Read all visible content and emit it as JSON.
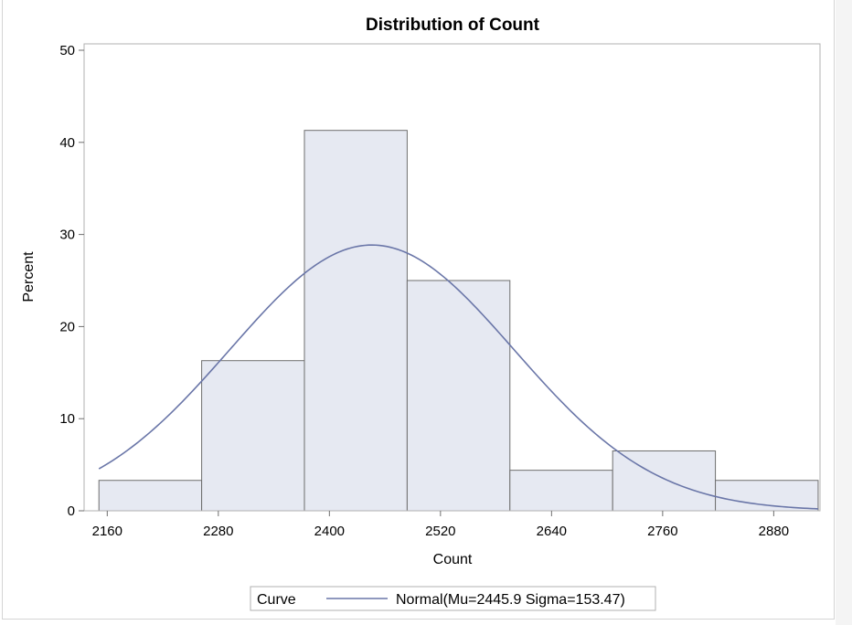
{
  "chart_data": {
    "type": "bar",
    "title": "Distribution of Count",
    "xlabel": "Count",
    "ylabel": "Percent",
    "bin_width": 111,
    "bins": [
      {
        "start": 2151,
        "end": 2262,
        "value": 3.3
      },
      {
        "start": 2262,
        "end": 2373,
        "value": 16.3
      },
      {
        "start": 2373,
        "end": 2484,
        "value": 41.3
      },
      {
        "start": 2484,
        "end": 2595,
        "value": 25.0
      },
      {
        "start": 2595,
        "end": 2706,
        "value": 4.4
      },
      {
        "start": 2706,
        "end": 2817,
        "value": 6.5
      },
      {
        "start": 2817,
        "end": 2928,
        "value": 3.3
      }
    ],
    "xticks": [
      2160,
      2280,
      2400,
      2520,
      2640,
      2760,
      2880
    ],
    "yticks": [
      0,
      10,
      20,
      30,
      40,
      50
    ],
    "xlim": [
      2135,
      2930
    ],
    "ylim": [
      0,
      50
    ],
    "curve": {
      "type": "normal",
      "mu": 2445.9,
      "sigma": 153.47
    },
    "legend": {
      "title": "Curve",
      "label": "Normal(Mu=2445.9 Sigma=153.47)",
      "position": "bottom"
    },
    "colors": {
      "bar_fill": "#e6e9f2",
      "bar_stroke": "#6e6e6e",
      "curve": "#6a76a8",
      "frame": "#b0b0b0"
    }
  }
}
